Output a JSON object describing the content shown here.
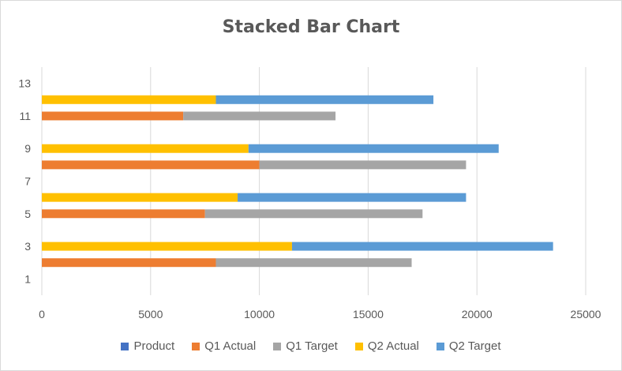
{
  "chart_data": {
    "type": "bar",
    "orientation": "horizontal",
    "stacked": true,
    "title": "Stacked Bar Chart",
    "xlim": [
      0,
      25000
    ],
    "x_ticks": [
      0,
      5000,
      10000,
      15000,
      20000,
      25000
    ],
    "ylim": [
      0,
      14
    ],
    "y_ticks": [
      1,
      3,
      5,
      7,
      9,
      11,
      13
    ],
    "legend_position": "bottom",
    "grid": true,
    "series": [
      {
        "name": "Product",
        "color": "#4472c4",
        "points": []
      },
      {
        "name": "Q1 Actual",
        "color": "#ed7d31",
        "points": [
          {
            "y": 2,
            "value": 8000
          },
          {
            "y": 5,
            "value": 7500
          },
          {
            "y": 8,
            "value": 10000
          },
          {
            "y": 11,
            "value": 6500
          }
        ]
      },
      {
        "name": "Q1 Target",
        "color": "#a5a5a5",
        "points": [
          {
            "y": 2,
            "value": 9000
          },
          {
            "y": 5,
            "value": 10000
          },
          {
            "y": 8,
            "value": 9500
          },
          {
            "y": 11,
            "value": 7000
          }
        ]
      },
      {
        "name": "Q2 Actual",
        "color": "#ffc000",
        "points": [
          {
            "y": 3,
            "value": 11500
          },
          {
            "y": 6,
            "value": 9000
          },
          {
            "y": 9,
            "value": 9500
          },
          {
            "y": 12,
            "value": 8000
          }
        ]
      },
      {
        "name": "Q2 Target",
        "color": "#5b9bd5",
        "points": [
          {
            "y": 3,
            "value": 12000
          },
          {
            "y": 6,
            "value": 10500
          },
          {
            "y": 9,
            "value": 11500
          },
          {
            "y": 12,
            "value": 10000
          }
        ]
      }
    ]
  }
}
